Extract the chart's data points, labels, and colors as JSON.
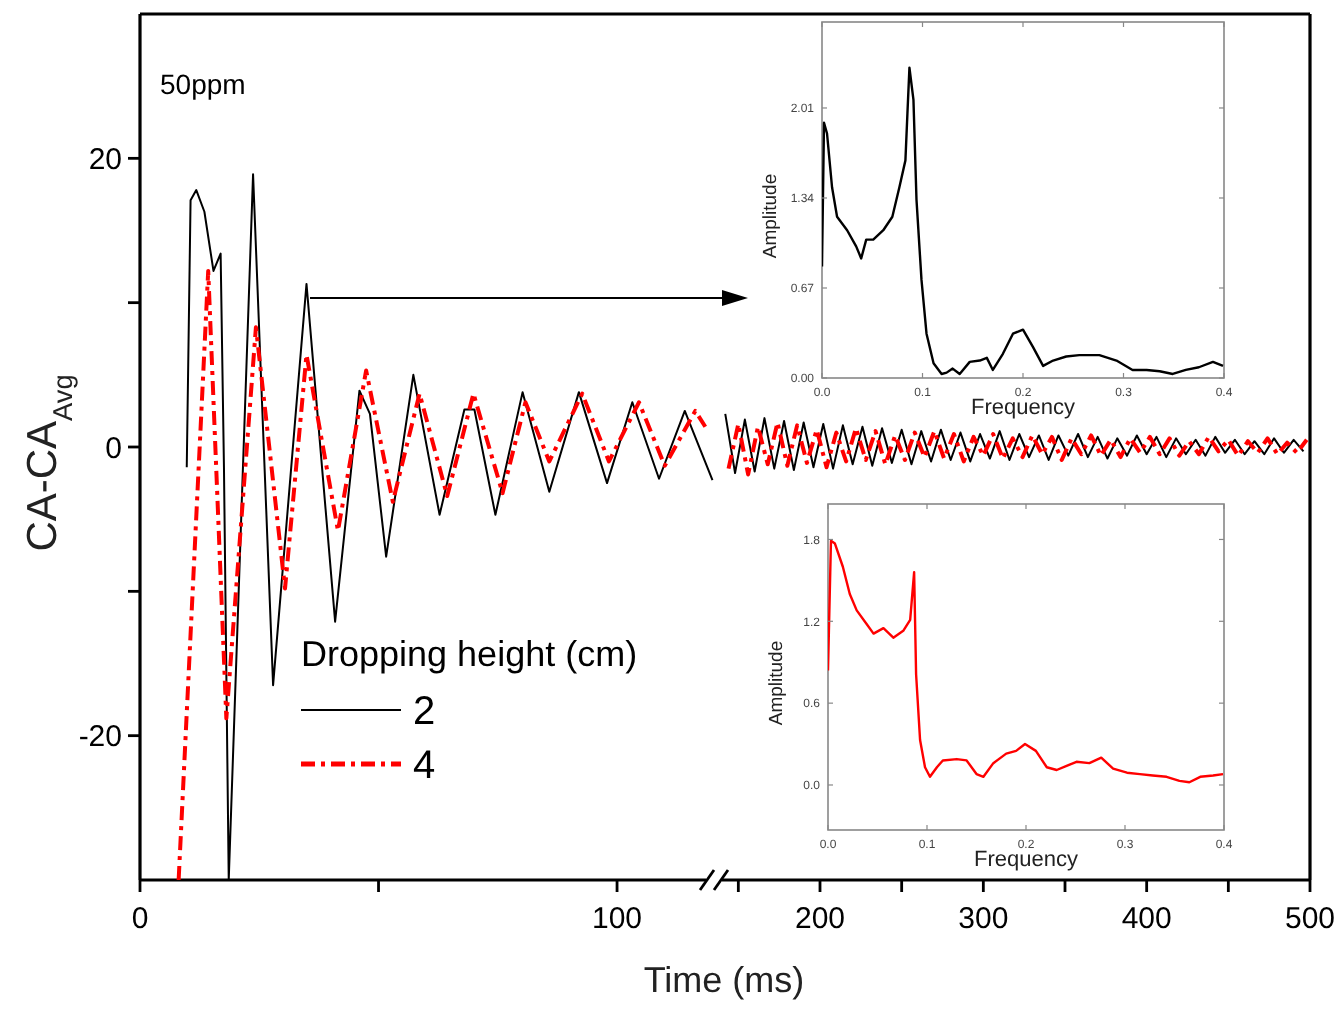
{
  "chart_data": [
    {
      "type": "line",
      "ylabel": "CA-CA$_{Avg}$",
      "xlim": [
        0,
        122
      ],
      "xticks": [
        0,
        {
          "value": 50,
          "label": null
        },
        100
      ],
      "ylim": [
        -30,
        30
      ],
      "yticks": [
        -20,
        {
          "value": -10,
          "label": null
        },
        0,
        {
          "value": 10,
          "label": null
        },
        20
      ],
      "legend_title": "Dropping height (cm)",
      "legend": "bottom",
      "annotations": [
        "50ppm"
      ],
      "series": [
        {
          "name": "2",
          "color": "#000000",
          "line_style": "solid",
          "x": [
            9.8,
            10.6,
            11.8,
            13.5,
            15.4,
            16.9,
            17.6,
            18.6,
            23.7,
            27.9,
            34.9,
            40.9,
            46.0,
            48.2,
            51.6,
            57.3,
            62.8,
            68.0,
            70.1,
            74.5,
            80.2,
            85.8,
            92.0,
            97.9,
            103.2,
            108.8,
            114.2,
            120.0
          ],
          "values": [
            -1.4,
            17.1,
            17.8,
            16.3,
            12.2,
            13.4,
            -1.4,
            -30,
            18.9,
            -16.5,
            11.3,
            -12.1,
            3.9,
            2.3,
            -7.6,
            5.0,
            -4.7,
            2.6,
            2.6,
            -4.7,
            3.8,
            -3.1,
            3.8,
            -2.5,
            3.1,
            -2.2,
            2.5,
            -2.3
          ]
        },
        {
          "name": "4",
          "color": "#ff0000",
          "line_style": "dashed",
          "x": [
            8.1,
            14.3,
            18.1,
            24.3,
            30.4,
            34.9,
            41.5,
            47.4,
            53.0,
            58.6,
            64.4,
            69.9,
            76.0,
            80.8,
            85.8,
            92.7,
            98.3,
            104.6,
            110.0,
            116.4,
            118.5
          ],
          "values": [
            -30,
            12.2,
            -18.8,
            8.3,
            -9.8,
            6.4,
            -5.8,
            5.3,
            -3.8,
            3.7,
            -3.4,
            3.7,
            -3.2,
            3.1,
            -1.0,
            3.7,
            -1.0,
            3.1,
            -1.3,
            2.5,
            1.4
          ]
        }
      ]
    },
    {
      "type": "line",
      "xlabel": "Time (ms)",
      "xlim": [
        140,
        500
      ],
      "xticks": [
        {
          "value": 150,
          "label": null
        },
        200,
        {
          "value": 250,
          "label": null
        },
        300,
        {
          "value": 350,
          "label": null
        },
        400,
        {
          "value": 450,
          "label": null
        },
        500
      ],
      "ylim": [
        -30,
        30
      ],
      "tick_labels": "x",
      "series": [
        {
          "color": "#000000",
          "line_style": "solid",
          "x": [
            142,
            148,
            154,
            160,
            166,
            172,
            178,
            184,
            190,
            196,
            202,
            208,
            214,
            220,
            226,
            232,
            238,
            244,
            250,
            256,
            262,
            268,
            274,
            280,
            286,
            292,
            298,
            304,
            310,
            316,
            322,
            328,
            334,
            340,
            346,
            352,
            358,
            364,
            370,
            376,
            382,
            388,
            394,
            400,
            406,
            412,
            418,
            424,
            430,
            436,
            442,
            448,
            454,
            460,
            466,
            472,
            478,
            484,
            490,
            496
          ],
          "values": [
            2.3,
            -1.8,
            1.9,
            -1.7,
            2.0,
            -1.5,
            1.8,
            -1.6,
            1.7,
            -1.4,
            1.6,
            -1.5,
            1.5,
            -1.2,
            1.4,
            -1.3,
            1.3,
            -1.1,
            1.2,
            -1.2,
            1.1,
            -1.0,
            1.2,
            -0.9,
            1.0,
            -1.0,
            0.9,
            -0.8,
            1.1,
            -0.9,
            0.9,
            -0.7,
            0.8,
            -0.9,
            0.8,
            -0.6,
            0.9,
            -0.7,
            0.7,
            -0.8,
            0.6,
            -0.6,
            0.8,
            -0.5,
            0.7,
            -0.7,
            0.6,
            -0.5,
            0.5,
            -0.6,
            0.7,
            -0.4,
            0.5,
            -0.5,
            0.4,
            -0.5,
            0.6,
            -0.4,
            0.5,
            -0.3
          ]
        },
        {
          "color": "#ff0000",
          "line_style": "dashed",
          "x": [
            144,
            150,
            156,
            162,
            168,
            174,
            180,
            186,
            192,
            198,
            204,
            210,
            216,
            222,
            228,
            234,
            240,
            246,
            252,
            258,
            264,
            270,
            276,
            282,
            288,
            294,
            300,
            306,
            312,
            318,
            324,
            330,
            336,
            342,
            348,
            354,
            360,
            366,
            372,
            378,
            384,
            390,
            396,
            402,
            408,
            414,
            420,
            426,
            432,
            438,
            444,
            450,
            456,
            462,
            468,
            474,
            480,
            486,
            492,
            498
          ],
          "values": [
            -1.5,
            1.6,
            -1.9,
            1.4,
            -1.2,
            1.7,
            -1.3,
            1.5,
            -1.1,
            1.2,
            -1.4,
            1.0,
            -1.0,
            1.3,
            -0.9,
            1.1,
            -1.2,
            0.8,
            -0.9,
            1.0,
            -0.7,
            1.1,
            -0.8,
            0.9,
            -1.0,
            0.7,
            -0.6,
            0.9,
            -0.8,
            0.6,
            -0.7,
            0.8,
            -0.5,
            0.7,
            -0.9,
            0.6,
            -0.5,
            0.8,
            -0.6,
            0.5,
            -0.7,
            0.6,
            -0.4,
            0.7,
            -0.5,
            0.6,
            -0.6,
            0.4,
            -0.5,
            0.7,
            -0.3,
            0.5,
            -0.6,
            0.4,
            -0.4,
            0.6,
            -0.5,
            0.3,
            -0.4,
            0.5
          ]
        }
      ]
    },
    {
      "type": "line",
      "xlabel": "Frequency",
      "ylabel": "Amplitude",
      "xlim": [
        0,
        0.4
      ],
      "xticks": [
        {
          "value": 0,
          "label": "0.0"
        },
        0.1,
        0.2,
        0.3,
        0.4
      ],
      "ylim": [
        0,
        2.65
      ],
      "yticks": [
        {
          "value": 0,
          "label": "0.00"
        },
        0.67,
        1.34,
        2.01
      ],
      "series": [
        {
          "color": "#000000",
          "x": [
            0,
            0.002,
            0.005,
            0.01,
            0.015,
            0.025,
            0.034,
            0.039,
            0.044,
            0.051,
            0.061,
            0.07,
            0.077,
            0.083,
            0.085,
            0.087,
            0.091,
            0.094,
            0.099,
            0.104,
            0.111,
            0.119,
            0.124,
            0.13,
            0.137,
            0.147,
            0.157,
            0.164,
            0.17,
            0.18,
            0.19,
            0.2,
            0.21,
            0.22,
            0.23,
            0.243,
            0.256,
            0.276,
            0.293,
            0.309,
            0.323,
            0.336,
            0.349,
            0.362,
            0.375,
            0.389,
            0.399
          ],
          "values": [
            0.83,
            1.9,
            1.82,
            1.42,
            1.2,
            1.1,
            0.98,
            0.89,
            1.03,
            1.03,
            1.1,
            1.2,
            1.42,
            1.62,
            1.97,
            2.31,
            2.07,
            1.33,
            0.73,
            0.33,
            0.11,
            0.03,
            0.04,
            0.07,
            0.03,
            0.12,
            0.13,
            0.15,
            0.06,
            0.18,
            0.33,
            0.36,
            0.23,
            0.09,
            0.13,
            0.16,
            0.17,
            0.17,
            0.13,
            0.06,
            0.06,
            0.05,
            0.03,
            0.06,
            0.08,
            0.12,
            0.09
          ]
        }
      ]
    },
    {
      "type": "line",
      "xlabel": "Frequency",
      "ylabel": "Amplitude",
      "xlim": [
        0,
        0.4
      ],
      "xticks": [
        {
          "value": 0,
          "label": "0.0"
        },
        0.1,
        0.2,
        0.3,
        0.4
      ],
      "ylim": [
        -0.33,
        2.06
      ],
      "yticks": [
        {
          "value": 0,
          "label": "0.0"
        },
        0.6,
        1.2,
        1.8
      ],
      "series": [
        {
          "color": "#ff0000",
          "x": [
            0,
            0.003,
            0.007,
            0.015,
            0.022,
            0.029,
            0.039,
            0.046,
            0.056,
            0.066,
            0.076,
            0.083,
            0.087,
            0.089,
            0.093,
            0.098,
            0.103,
            0.11,
            0.116,
            0.13,
            0.14,
            0.15,
            0.157,
            0.167,
            0.18,
            0.19,
            0.199,
            0.21,
            0.221,
            0.231,
            0.241,
            0.251,
            0.264,
            0.276,
            0.288,
            0.302,
            0.315,
            0.328,
            0.342,
            0.355,
            0.365,
            0.376,
            0.389,
            0.399
          ],
          "values": [
            0.84,
            1.79,
            1.77,
            1.6,
            1.4,
            1.28,
            1.18,
            1.11,
            1.15,
            1.08,
            1.13,
            1.21,
            1.56,
            0.81,
            0.33,
            0.13,
            0.06,
            0.13,
            0.18,
            0.19,
            0.18,
            0.08,
            0.06,
            0.16,
            0.23,
            0.25,
            0.3,
            0.25,
            0.13,
            0.11,
            0.14,
            0.17,
            0.16,
            0.2,
            0.12,
            0.09,
            0.08,
            0.07,
            0.06,
            0.03,
            0.02,
            0.06,
            0.07,
            0.08
          ]
        }
      ]
    }
  ]
}
